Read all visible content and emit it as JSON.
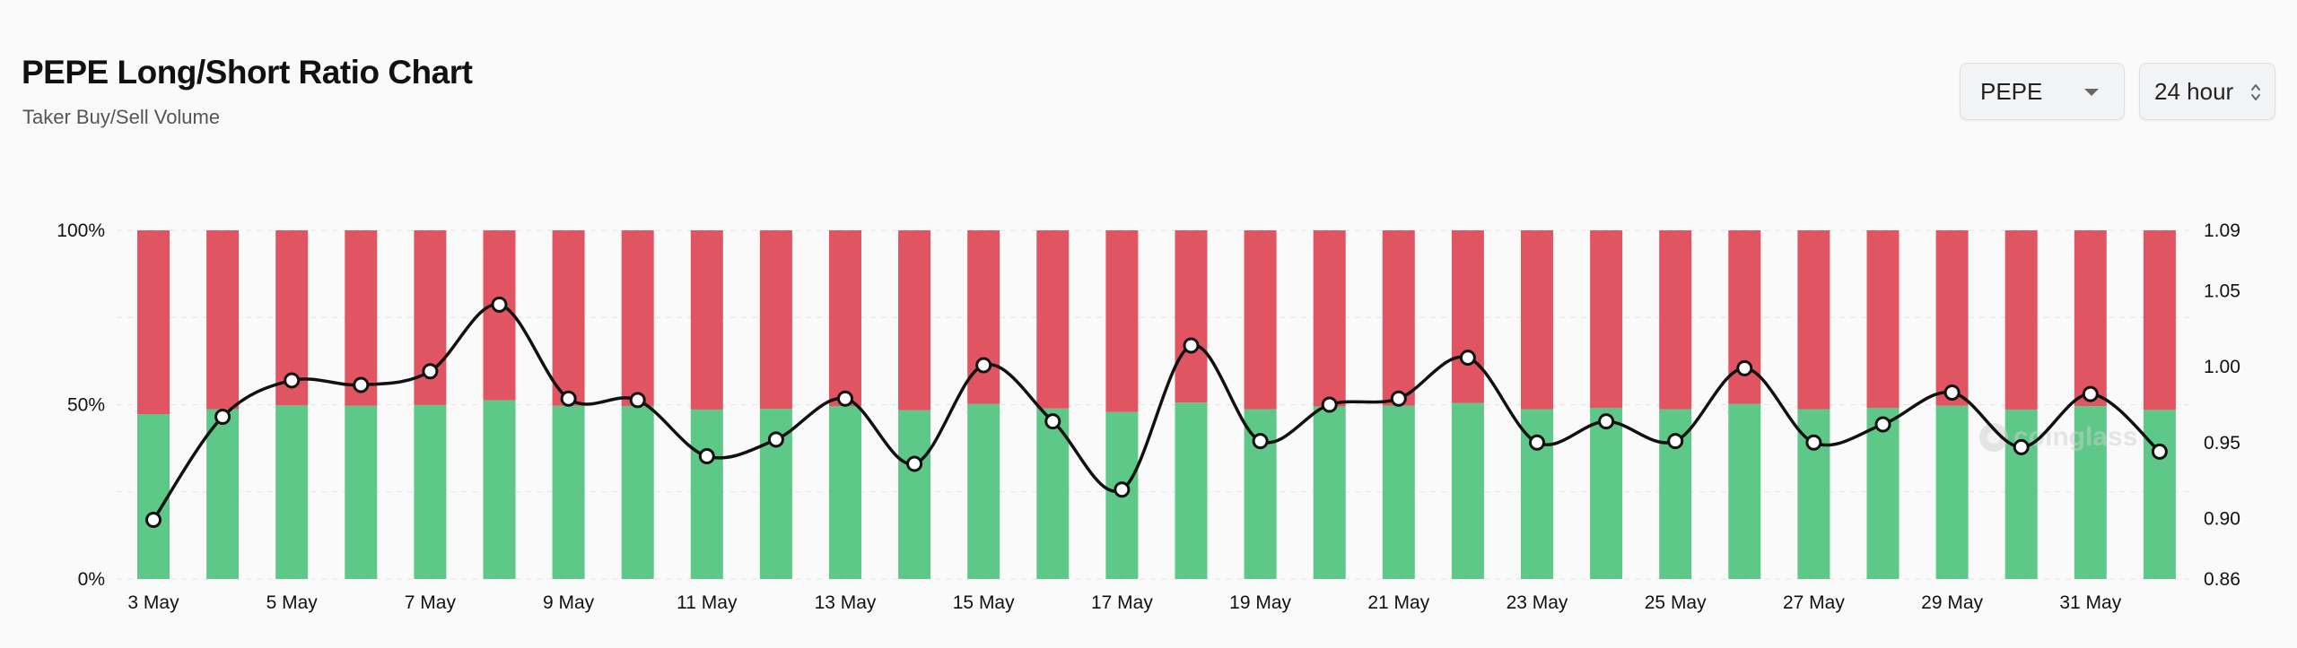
{
  "header": {
    "title": "PEPE Long/Short Ratio Chart",
    "subtitle": "Taker Buy/Sell Volume"
  },
  "controls": {
    "symbol": "PEPE",
    "period": "24 hour"
  },
  "watermark": "coinglass",
  "chart_data": {
    "type": "bar",
    "stacked": true,
    "dates": [
      "3 May",
      "4 May",
      "5 May",
      "6 May",
      "7 May",
      "8 May",
      "9 May",
      "10 May",
      "11 May",
      "12 May",
      "13 May",
      "14 May",
      "15 May",
      "16 May",
      "17 May",
      "18 May",
      "19 May",
      "20 May",
      "21 May",
      "22 May",
      "23 May",
      "24 May",
      "25 May",
      "26 May",
      "27 May",
      "28 May",
      "29 May",
      "30 May",
      "31 May",
      "1 Jun"
    ],
    "x_tick_labels": [
      "3 May",
      "5 May",
      "7 May",
      "9 May",
      "11 May",
      "13 May",
      "15 May",
      "17 May",
      "19 May",
      "21 May",
      "23 May",
      "25 May",
      "27 May",
      "29 May",
      "31 May"
    ],
    "series": [
      {
        "name": "Buy",
        "color": "#5dc887",
        "values": [
          47.3,
          48.7,
          49.8,
          49.7,
          49.9,
          51.3,
          49.7,
          49.6,
          48.6,
          48.8,
          49.6,
          48.4,
          50.2,
          48.9,
          47.9,
          50.6,
          48.7,
          49.5,
          49.7,
          50.5,
          48.7,
          49.1,
          48.7,
          50.2,
          48.7,
          49.1,
          49.7,
          48.6,
          49.6,
          48.5
        ]
      },
      {
        "name": "Sell",
        "color": "#e15563",
        "values": [
          52.7,
          51.3,
          50.2,
          50.3,
          50.1,
          48.7,
          50.3,
          50.4,
          51.4,
          51.2,
          50.4,
          51.6,
          49.8,
          51.1,
          52.1,
          49.4,
          51.3,
          50.5,
          50.3,
          49.5,
          51.3,
          50.9,
          51.3,
          49.8,
          51.3,
          50.9,
          50.3,
          51.4,
          50.4,
          51.5
        ]
      },
      {
        "name": "Long/Short Ratio",
        "type": "line",
        "axis": "right",
        "color": "#111111",
        "values": [
          0.899,
          0.967,
          0.991,
          0.988,
          0.997,
          1.041,
          0.979,
          0.978,
          0.941,
          0.952,
          0.979,
          0.936,
          1.001,
          0.964,
          0.919,
          1.014,
          0.951,
          0.975,
          0.979,
          1.006,
          0.95,
          0.964,
          0.951,
          0.999,
          0.95,
          0.962,
          0.983,
          0.947,
          0.982,
          0.944
        ]
      }
    ],
    "y_left": {
      "ticks": [
        "0%",
        "50%",
        "100%"
      ],
      "range": [
        0,
        100
      ]
    },
    "y_right": {
      "ticks": [
        "0.86",
        "0.90",
        "0.95",
        "1.00",
        "1.05",
        "1.09"
      ],
      "range": [
        0.86,
        1.09
      ]
    },
    "grid": true,
    "legend": "none"
  }
}
